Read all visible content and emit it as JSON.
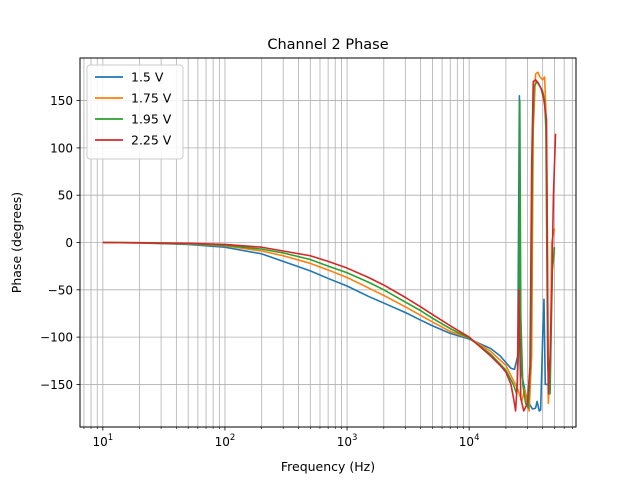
{
  "chart_data": {
    "type": "line",
    "title": "Channel 2 Phase",
    "xlabel": "Frequency (Hz)",
    "ylabel": "Phase (degrees)",
    "xscale": "log",
    "xlim": [
      6.5,
      75000
    ],
    "ylim": [
      -195,
      195
    ],
    "xticks": [
      {
        "value": 10,
        "base": "10",
        "exp": "1"
      },
      {
        "value": 100,
        "base": "10",
        "exp": "2"
      },
      {
        "value": 1000,
        "base": "10",
        "exp": "3"
      },
      {
        "value": 10000,
        "base": "10",
        "exp": "4"
      }
    ],
    "yticks": [
      {
        "value": 150,
        "label": "150"
      },
      {
        "value": 100,
        "label": "100"
      },
      {
        "value": 50,
        "label": "50"
      },
      {
        "value": 0,
        "label": "0"
      },
      {
        "value": -50,
        "label": "−50"
      },
      {
        "value": -100,
        "label": "−100"
      },
      {
        "value": -150,
        "label": "−150"
      }
    ],
    "grid": true,
    "grid_minor_x": true,
    "legend_position": "top-left",
    "series": [
      {
        "name": "1.5 V",
        "color": "#1f77b4",
        "points": [
          [
            10,
            0
          ],
          [
            20,
            -0.5
          ],
          [
            50,
            -2
          ],
          [
            100,
            -5
          ],
          [
            200,
            -12
          ],
          [
            300,
            -20
          ],
          [
            500,
            -30
          ],
          [
            700,
            -38
          ],
          [
            1000,
            -46
          ],
          [
            1500,
            -57
          ],
          [
            2000,
            -64
          ],
          [
            3000,
            -74
          ],
          [
            4000,
            -82
          ],
          [
            5000,
            -88
          ],
          [
            7000,
            -96
          ],
          [
            10000,
            -102
          ],
          [
            15000,
            -112
          ],
          [
            18000,
            -120
          ],
          [
            20000,
            -127
          ],
          [
            22000,
            -133
          ],
          [
            23500,
            -134
          ],
          [
            25000,
            -120
          ],
          [
            25800,
            155
          ],
          [
            26200,
            -50
          ],
          [
            27000,
            -140
          ],
          [
            29000,
            -160
          ],
          [
            31000,
            -170
          ],
          [
            33000,
            -176
          ],
          [
            35000,
            -175
          ],
          [
            36000,
            -168
          ],
          [
            37500,
            -178
          ],
          [
            38500,
            -177
          ],
          [
            40000,
            -100
          ],
          [
            41000,
            -60
          ],
          [
            42000,
            -150
          ],
          [
            44000,
            -150
          ]
        ]
      },
      {
        "name": "1.75 V",
        "color": "#ff7f0e",
        "points": [
          [
            10,
            0
          ],
          [
            20,
            -0.3
          ],
          [
            50,
            -1.5
          ],
          [
            100,
            -3.5
          ],
          [
            200,
            -9
          ],
          [
            300,
            -14
          ],
          [
            500,
            -22
          ],
          [
            700,
            -29
          ],
          [
            1000,
            -37
          ],
          [
            1500,
            -48
          ],
          [
            2000,
            -56
          ],
          [
            3000,
            -68
          ],
          [
            4000,
            -77
          ],
          [
            5000,
            -84
          ],
          [
            7000,
            -94
          ],
          [
            10000,
            -101
          ],
          [
            15000,
            -115
          ],
          [
            20000,
            -130
          ],
          [
            25000,
            -155
          ],
          [
            27000,
            -168
          ],
          [
            28500,
            -155
          ],
          [
            30000,
            -170
          ],
          [
            31000,
            -178
          ],
          [
            32500,
            -120
          ],
          [
            33500,
            120
          ],
          [
            35000,
            178
          ],
          [
            36500,
            180
          ],
          [
            38000,
            175
          ],
          [
            40000,
            172
          ],
          [
            41500,
            175
          ],
          [
            42500,
            140
          ],
          [
            43500,
            50
          ],
          [
            44500,
            -170
          ],
          [
            46000,
            -140
          ],
          [
            47500,
            0
          ],
          [
            50000,
            15
          ]
        ]
      },
      {
        "name": "1.95 V",
        "color": "#2ca02c",
        "points": [
          [
            10,
            0
          ],
          [
            20,
            -0.3
          ],
          [
            50,
            -1.2
          ],
          [
            100,
            -3
          ],
          [
            200,
            -7
          ],
          [
            300,
            -11
          ],
          [
            500,
            -18
          ],
          [
            700,
            -25
          ],
          [
            1000,
            -32
          ],
          [
            1500,
            -42
          ],
          [
            2000,
            -50
          ],
          [
            3000,
            -63
          ],
          [
            4000,
            -72
          ],
          [
            5000,
            -80
          ],
          [
            7000,
            -91
          ],
          [
            10000,
            -101
          ],
          [
            15000,
            -118
          ],
          [
            20000,
            -135
          ],
          [
            23000,
            -150
          ],
          [
            24500,
            -160
          ],
          [
            25500,
            -110
          ],
          [
            26000,
            150
          ],
          [
            26500,
            -80
          ],
          [
            27500,
            -150
          ],
          [
            29000,
            -170
          ],
          [
            30500,
            -175
          ],
          [
            32000,
            -120
          ],
          [
            33000,
            100
          ],
          [
            34000,
            165
          ],
          [
            36000,
            170
          ],
          [
            38000,
            165
          ],
          [
            40000,
            160
          ],
          [
            41500,
            150
          ],
          [
            42500,
            120
          ],
          [
            44000,
            -130
          ],
          [
            46000,
            -160
          ],
          [
            48000,
            -30
          ],
          [
            50000,
            -5
          ]
        ]
      },
      {
        "name": "2.25 V",
        "color": "#d62728",
        "points": [
          [
            10,
            0
          ],
          [
            20,
            -0.2
          ],
          [
            50,
            -0.8
          ],
          [
            100,
            -2
          ],
          [
            200,
            -5
          ],
          [
            300,
            -9
          ],
          [
            500,
            -14
          ],
          [
            700,
            -20
          ],
          [
            1000,
            -27
          ],
          [
            1500,
            -37
          ],
          [
            2000,
            -45
          ],
          [
            3000,
            -58
          ],
          [
            4000,
            -68
          ],
          [
            5000,
            -76
          ],
          [
            7000,
            -88
          ],
          [
            10000,
            -100
          ],
          [
            15000,
            -120
          ],
          [
            18000,
            -130
          ],
          [
            20000,
            -137
          ],
          [
            22000,
            -150
          ],
          [
            23500,
            -170
          ],
          [
            24000,
            -178
          ],
          [
            24800,
            -148
          ],
          [
            25500,
            -50
          ],
          [
            26500,
            -165
          ],
          [
            28000,
            -178
          ],
          [
            30000,
            -170
          ],
          [
            31500,
            -130
          ],
          [
            32500,
            80
          ],
          [
            33500,
            170
          ],
          [
            35000,
            172
          ],
          [
            37000,
            168
          ],
          [
            39000,
            162
          ],
          [
            41000,
            150
          ],
          [
            43000,
            130
          ],
          [
            44500,
            -160
          ],
          [
            46000,
            -120
          ],
          [
            47500,
            -50
          ],
          [
            49000,
            50
          ],
          [
            51000,
            115
          ]
        ]
      }
    ]
  }
}
